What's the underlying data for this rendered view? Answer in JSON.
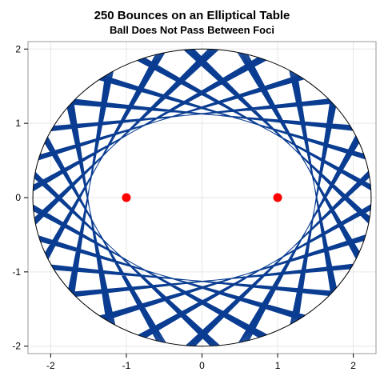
{
  "chart_data": {
    "type": "line",
    "title": "250 Bounces on an Elliptical Table",
    "subtitle": "Ball Does Not Pass Between Foci",
    "xlabel": "",
    "ylabel": "",
    "xlim": [
      -2.3,
      2.3
    ],
    "ylim": [
      -2.1,
      2.1
    ],
    "x_ticks": [
      -2,
      -1,
      0,
      1,
      2
    ],
    "y_ticks": [
      -2,
      -1,
      0,
      1,
      2
    ],
    "grid": true,
    "table": {
      "a": 2.236,
      "b": 2.0,
      "color": "#000000"
    },
    "caustic": {
      "a": 1.5,
      "b": 1.118
    },
    "bounces": 250,
    "path_color": "#0a3d91",
    "foci": [
      {
        "x": -1,
        "y": 0
      },
      {
        "x": 1,
        "y": 0
      }
    ],
    "foci_color": "#ff0000"
  }
}
